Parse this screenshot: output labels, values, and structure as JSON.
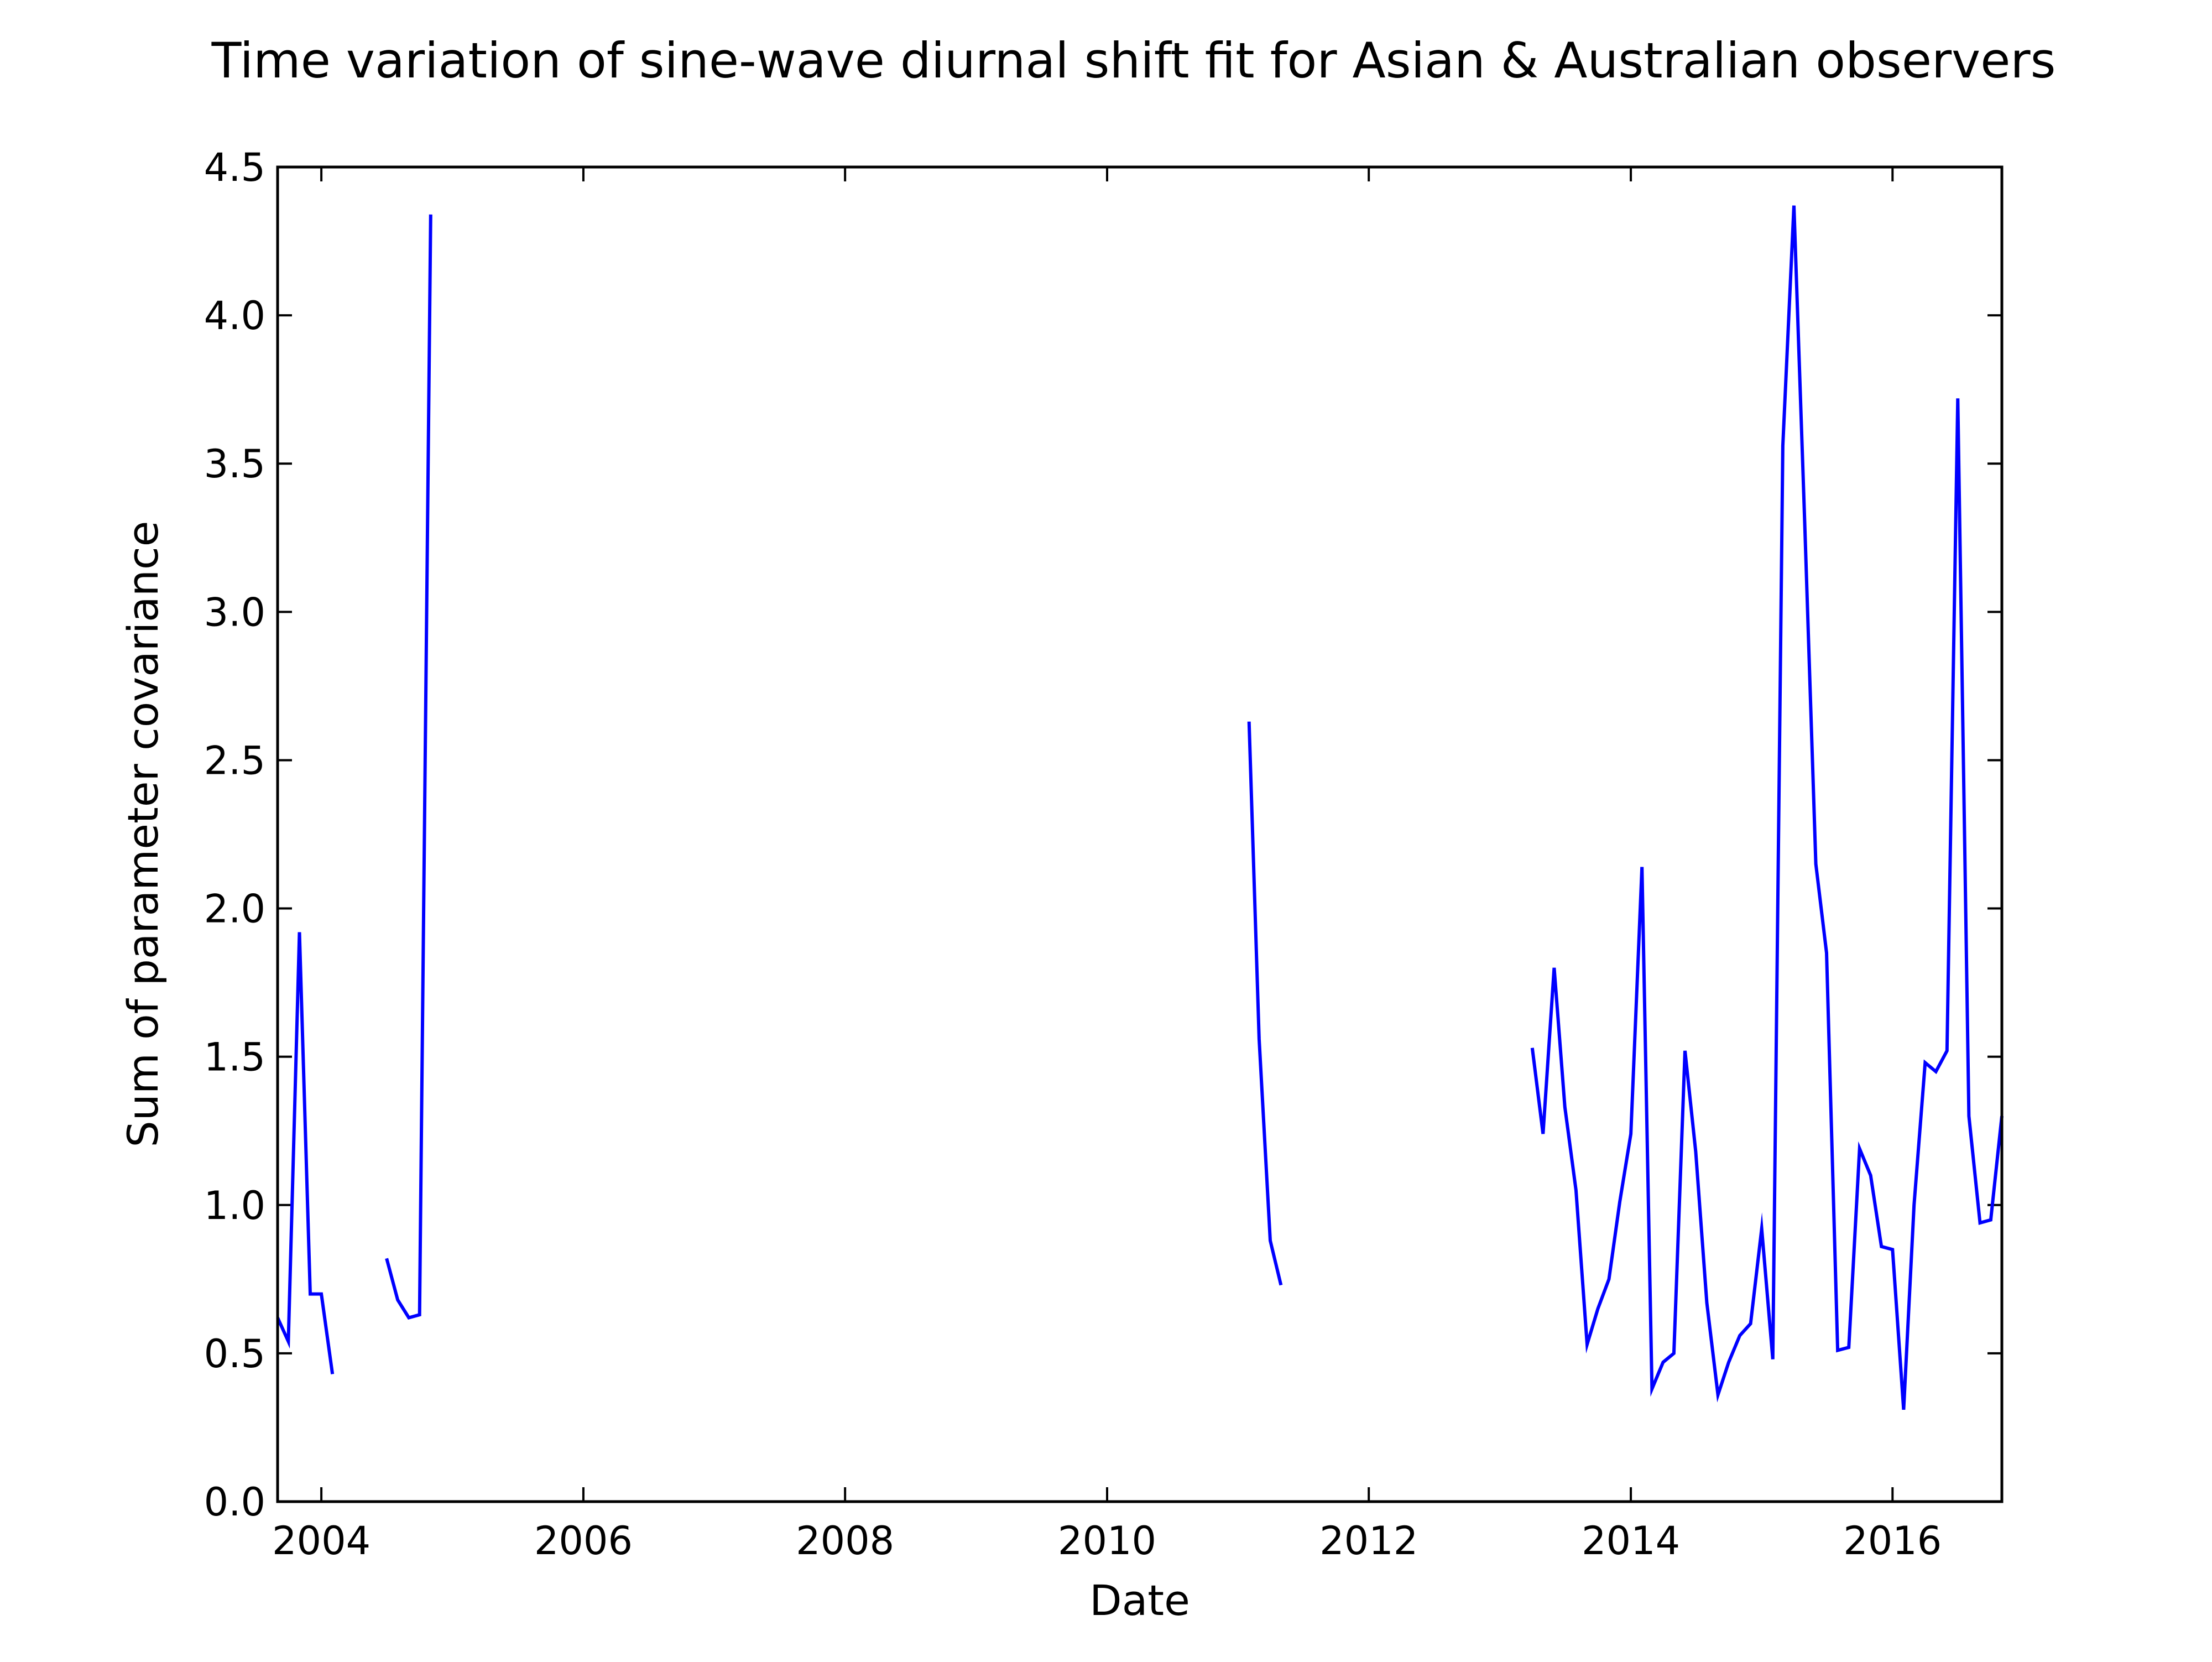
{
  "chart_data": {
    "type": "line",
    "title": "Time variation of sine-wave diurnal shift fit for Asian & Australian observers",
    "xlabel": "Date",
    "ylabel": "Sum of parameter covariance",
    "xlim": [
      "2003-09-01",
      "2016-11-01"
    ],
    "ylim": [
      0.0,
      4.5
    ],
    "x_ticks": [
      "2004",
      "2006",
      "2008",
      "2010",
      "2012",
      "2014",
      "2016"
    ],
    "y_ticks": [
      "0.0",
      "0.5",
      "1.0",
      "1.5",
      "2.0",
      "2.5",
      "3.0",
      "3.5",
      "4.0",
      "4.5"
    ],
    "grid": false,
    "line_color": "#0000ff",
    "series": [
      {
        "segments": [
          [
            [
              "2003-09-01",
              0.62
            ],
            [
              "2003-10-01",
              0.54
            ],
            [
              "2003-11-01",
              1.92
            ],
            [
              "2003-12-01",
              0.7
            ],
            [
              "2004-01-01",
              0.7
            ],
            [
              "2004-02-01",
              0.43
            ]
          ],
          [
            [
              "2004-07-01",
              0.82
            ],
            [
              "2004-08-01",
              0.68
            ],
            [
              "2004-09-01",
              0.62
            ],
            [
              "2004-10-01",
              0.63
            ],
            [
              "2004-11-01",
              4.34
            ]
          ],
          [
            [
              "2011-02-01",
              2.63
            ],
            [
              "2011-03-01",
              1.56
            ],
            [
              "2011-04-01",
              0.88
            ],
            [
              "2011-05-01",
              0.73
            ]
          ],
          [
            [
              "2013-04-01",
              1.53
            ],
            [
              "2013-05-01",
              1.24
            ],
            [
              "2013-06-01",
              1.8
            ],
            [
              "2013-07-01",
              1.33
            ],
            [
              "2013-08-01",
              1.05
            ],
            [
              "2013-09-01",
              0.53
            ],
            [
              "2013-10-01",
              0.65
            ],
            [
              "2013-11-01",
              0.75
            ],
            [
              "2013-12-01",
              1.01
            ],
            [
              "2014-01-01",
              1.24
            ],
            [
              "2014-02-01",
              2.14
            ],
            [
              "2014-03-01",
              0.38
            ],
            [
              "2014-04-01",
              0.47
            ],
            [
              "2014-05-01",
              0.5
            ],
            [
              "2014-06-01",
              1.52
            ],
            [
              "2014-07-01",
              1.18
            ],
            [
              "2014-08-01",
              0.67
            ],
            [
              "2014-09-01",
              0.36
            ],
            [
              "2014-10-01",
              0.47
            ],
            [
              "2014-11-01",
              0.56
            ],
            [
              "2014-12-01",
              0.6
            ],
            [
              "2015-01-01",
              0.92
            ],
            [
              "2015-02-01",
              0.48
            ],
            [
              "2015-03-01",
              3.56
            ],
            [
              "2015-04-01",
              4.37
            ],
            [
              "2015-05-01",
              3.3
            ],
            [
              "2015-06-01",
              2.15
            ],
            [
              "2015-07-01",
              1.85
            ],
            [
              "2015-08-01",
              0.51
            ],
            [
              "2015-09-01",
              0.52
            ],
            [
              "2015-10-01",
              1.19
            ],
            [
              "2015-11-01",
              1.1
            ],
            [
              "2015-12-01",
              0.86
            ],
            [
              "2016-01-01",
              0.85
            ],
            [
              "2016-02-01",
              0.31
            ],
            [
              "2016-03-01",
              1.0
            ],
            [
              "2016-04-01",
              1.48
            ],
            [
              "2016-05-01",
              1.45
            ],
            [
              "2016-06-01",
              1.52
            ],
            [
              "2016-07-01",
              3.72
            ],
            [
              "2016-08-01",
              1.3
            ],
            [
              "2016-09-01",
              0.94
            ],
            [
              "2016-10-01",
              0.95
            ],
            [
              "2016-11-01",
              1.3
            ]
          ]
        ]
      }
    ]
  }
}
